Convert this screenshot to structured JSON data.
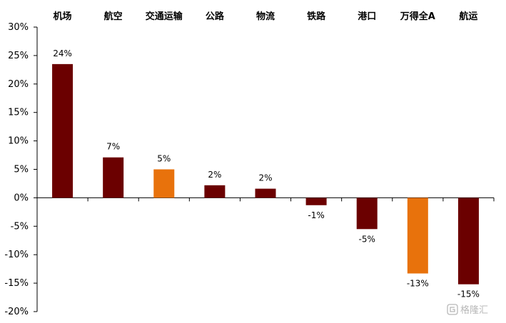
{
  "chart_data": {
    "type": "bar",
    "title": "",
    "xlabel": "",
    "ylabel": "",
    "categories": [
      "机场",
      "航空",
      "交通运输",
      "公路",
      "物流",
      "铁路",
      "港口",
      "万得全A",
      "航运"
    ],
    "values": [
      23.5,
      7.1,
      5.0,
      2.2,
      1.6,
      -1.3,
      -5.5,
      -13.3,
      -15.2
    ],
    "value_labels": [
      "24%",
      "7%",
      "5%",
      "2%",
      "2%",
      "-1%",
      "-5%",
      "-13%",
      "-15%"
    ],
    "ylim": [
      -20,
      30
    ],
    "yticks": [
      30,
      25,
      20,
      15,
      10,
      5,
      0,
      -5,
      -10,
      -15,
      -20
    ],
    "ytick_labels": [
      "30%",
      "25%",
      "20%",
      "15%",
      "10%",
      "5%",
      "0%",
      "-5%",
      "-10%",
      "-15%",
      "-20%"
    ],
    "category_axis_position": "top",
    "grid": false,
    "colors": {
      "default": "#6b0000",
      "highlight": "#e8720c",
      "highlight_categories": [
        "交通运输",
        "万得全A"
      ]
    }
  },
  "watermark": {
    "icon": "gelonghui-logo-icon",
    "text": "格隆汇"
  }
}
